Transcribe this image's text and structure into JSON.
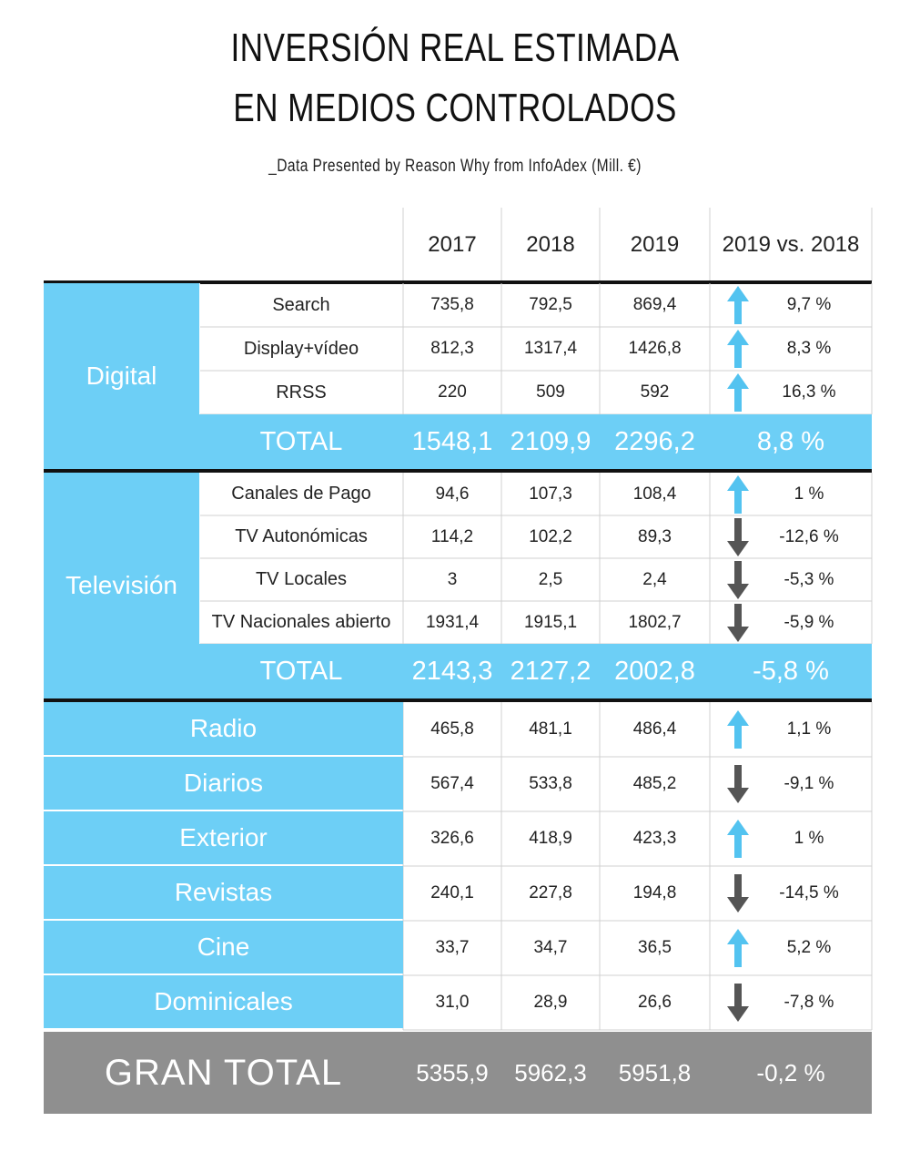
{
  "title_line1": "INVERSIÓN REAL ESTIMADA",
  "title_line2": "EN MEDIOS CONTROLADOS",
  "subtitle": "_Data Presented by Reason Why from InfoAdex (Mill. €)",
  "colors": {
    "accent": "#6dcff6",
    "grand_total": "#8f8f8f",
    "up_arrow": "#53c3f0",
    "down_arrow": "#555555"
  },
  "chart_data": {
    "type": "table",
    "columns": [
      "2017",
      "2018",
      "2019",
      "2019 vs. 2018"
    ],
    "groups": [
      {
        "name": "Digital",
        "rows": [
          {
            "label": "Search",
            "values": [
              "735,8",
              "792,5",
              "869,4"
            ],
            "change": "9,7 %",
            "direction": "up"
          },
          {
            "label": "Display+vídeo",
            "values": [
              "812,3",
              "1317,4",
              "1426,8"
            ],
            "change": "8,3 %",
            "direction": "up"
          },
          {
            "label": "RRSS",
            "values": [
              "220",
              "509",
              "592"
            ],
            "change": "16,3 %",
            "direction": "up"
          }
        ],
        "total": {
          "label": "TOTAL",
          "values": [
            "1548,1",
            "2109,9",
            "2296,2"
          ],
          "change": "8,8 %"
        }
      },
      {
        "name": "Televisión",
        "rows": [
          {
            "label": "Canales de Pago",
            "values": [
              "94,6",
              "107,3",
              "108,4"
            ],
            "change": "1 %",
            "direction": "up"
          },
          {
            "label": "TV Autonómicas",
            "values": [
              "114,2",
              "102,2",
              "89,3"
            ],
            "change": "-12,6 %",
            "direction": "down"
          },
          {
            "label": "TV Locales",
            "values": [
              "3",
              "2,5",
              "2,4"
            ],
            "change": "-5,3 %",
            "direction": "down"
          },
          {
            "label": "TV Nacionales abierto",
            "values": [
              "1931,4",
              "1915,1",
              "1802,7"
            ],
            "change": "-5,9 %",
            "direction": "down"
          }
        ],
        "total": {
          "label": "TOTAL",
          "values": [
            "2143,3",
            "2127,2",
            "2002,8"
          ],
          "change": "-5,8 %"
        }
      }
    ],
    "singles": [
      {
        "label": "Radio",
        "values": [
          "465,8",
          "481,1",
          "486,4"
        ],
        "change": "1,1 %",
        "direction": "up"
      },
      {
        "label": "Diarios",
        "values": [
          "567,4",
          "533,8",
          "485,2"
        ],
        "change": "-9,1 %",
        "direction": "down"
      },
      {
        "label": "Exterior",
        "values": [
          "326,6",
          "418,9",
          "423,3"
        ],
        "change": "1 %",
        "direction": "up"
      },
      {
        "label": "Revistas",
        "values": [
          "240,1",
          "227,8",
          "194,8"
        ],
        "change": "-14,5 %",
        "direction": "down"
      },
      {
        "label": "Cine",
        "values": [
          "33,7",
          "34,7",
          "36,5"
        ],
        "change": "5,2 %",
        "direction": "up"
      },
      {
        "label": "Dominicales",
        "values": [
          "31,0",
          "28,9",
          "26,6"
        ],
        "change": "-7,8 %",
        "direction": "down"
      }
    ],
    "grand_total": {
      "label": "GRAN TOTAL",
      "values": [
        "5355,9",
        "5962,3",
        "5951,8"
      ],
      "change": "-0,2 %"
    }
  }
}
